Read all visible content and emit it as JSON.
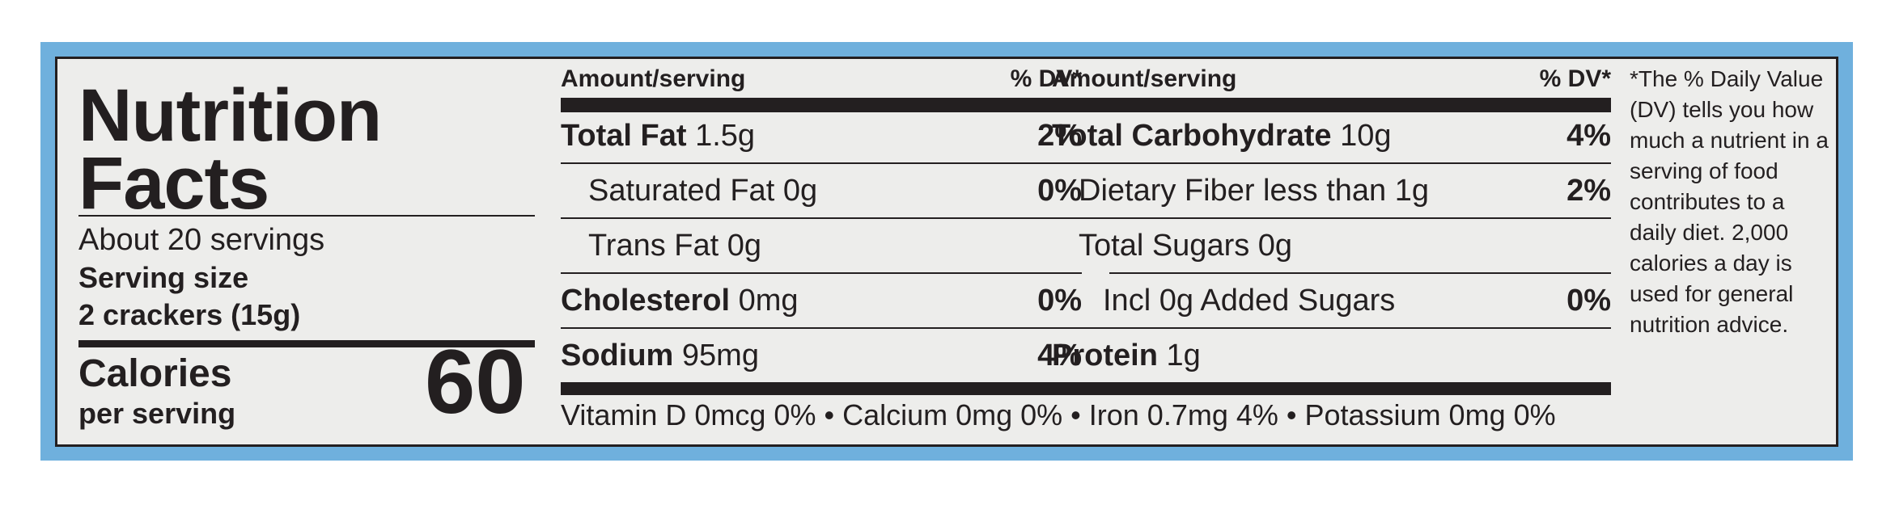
{
  "title_line1": "Nutrition",
  "title_line2": "Facts",
  "servings_per_container": "About 20 servings",
  "serving_size_label": "Serving size",
  "serving_size_value": "2 crackers (15g)",
  "calories_label": "Calories",
  "calories_sublabel": "per serving",
  "calories_value": "60",
  "col_header_amount": "Amount/serving",
  "col_header_dv": "% DV*",
  "left_rows": [
    {
      "name": "Total Fat",
      "amount": "1.5g",
      "dv": "2%"
    },
    {
      "name": "Saturated Fat",
      "amount": "0g",
      "dv": "0%"
    },
    {
      "name": "Trans Fat",
      "amount": "0g",
      "dv": ""
    },
    {
      "name": "Cholesterol",
      "amount": "0mg",
      "dv": "0%"
    },
    {
      "name": "Sodium",
      "amount": "95mg",
      "dv": "4%"
    }
  ],
  "right_rows": [
    {
      "name": "Total Carbohydrate",
      "amount": "10g",
      "dv": "4%"
    },
    {
      "name": "Dietary Fiber less than",
      "amount": "1g",
      "dv": "2%"
    },
    {
      "name": "Total Sugars",
      "amount": "0g",
      "dv": ""
    },
    {
      "name": "Incl 0g Added Sugars",
      "amount": "",
      "dv": "0%"
    },
    {
      "name": "Protein",
      "amount": "1g",
      "dv": ""
    }
  ],
  "footer_line": "Vitamin D 0mcg 0% • Calcium 0mg 0% • Iron 0.7mg 4% • Potassium 0mg 0%",
  "dv_note": "*The % Daily Value (DV) tells you how much a nutrient in a serving of food contributes to a daily diet. 2,000 calories a day is used for general nutrition advice.",
  "colors": {
    "frame": "#6fb0dd",
    "panel": "#ededeb",
    "ink": "#231f20"
  }
}
